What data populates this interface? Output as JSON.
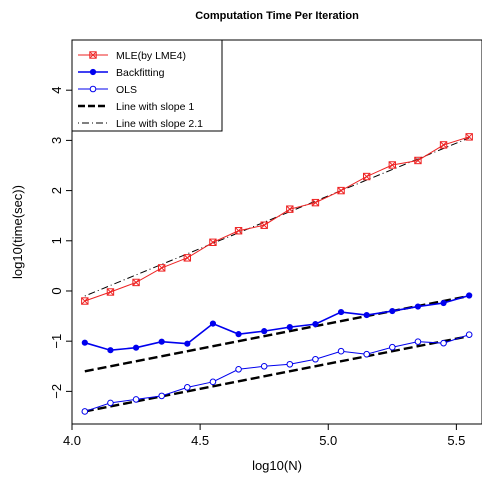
{
  "chart_data": {
    "type": "line",
    "title": "Computation Time Per Iteration",
    "xlabel": "log10(N)",
    "ylabel": "log10(time(sec))",
    "xlim": [
      4.0,
      5.6
    ],
    "ylim": [
      -2.65,
      5.0
    ],
    "xticks": [
      4.0,
      4.5,
      5.0,
      5.5
    ],
    "xtick_labels": [
      "4.0",
      "4.5",
      "5.0",
      "5.5"
    ],
    "yticks": [
      -2,
      -1,
      0,
      1,
      2,
      3,
      4
    ],
    "ytick_labels": [
      "−2",
      "−1",
      "0",
      "1",
      "2",
      "3",
      "4"
    ],
    "grid": false,
    "legend_position": "top-left",
    "x": [
      4.05,
      4.15,
      4.25,
      4.35,
      4.45,
      4.55,
      4.65,
      4.75,
      4.85,
      4.95,
      5.05,
      5.15,
      5.25,
      5.35,
      5.45,
      5.55
    ],
    "series": [
      {
        "name": "MLE(by LME4)",
        "color": "#ee2222",
        "marker": "square-x",
        "values": [
          -0.2,
          -0.02,
          0.17,
          0.46,
          0.66,
          0.97,
          1.2,
          1.31,
          1.63,
          1.76,
          2.0,
          2.28,
          2.51,
          2.6,
          2.91,
          3.07
        ]
      },
      {
        "name": "Backfitting",
        "color": "#0000ee",
        "marker": "filled-circle",
        "values": [
          -1.03,
          -1.18,
          -1.13,
          -1.01,
          -1.05,
          -0.65,
          -0.86,
          -0.8,
          -0.72,
          -0.66,
          -0.42,
          -0.48,
          -0.4,
          -0.31,
          -0.24,
          -0.09
        ]
      },
      {
        "name": "OLS",
        "color": "#0000ee",
        "marker": "open-circle",
        "values": [
          -2.4,
          -2.23,
          -2.16,
          -2.09,
          -1.92,
          -1.81,
          -1.56,
          -1.5,
          -1.46,
          -1.36,
          -1.2,
          -1.26,
          -1.12,
          -1.01,
          -1.04,
          -0.87
        ]
      }
    ],
    "reference_lines": [
      {
        "name": "Line with slope 1",
        "style": "dashed",
        "pairs": [
          [
            4.05,
            -1.6
          ],
          [
            5.55,
            -0.1
          ]
        ]
      },
      {
        "name": "Line with slope 1",
        "style": "dashed",
        "pairs": [
          [
            4.05,
            -2.4
          ],
          [
            5.55,
            -0.9
          ]
        ],
        "legend": false
      },
      {
        "name": "Line with slope 2.1",
        "style": "dotdash",
        "pairs": [
          [
            4.05,
            -0.1
          ],
          [
            5.55,
            3.05
          ]
        ]
      }
    ]
  }
}
